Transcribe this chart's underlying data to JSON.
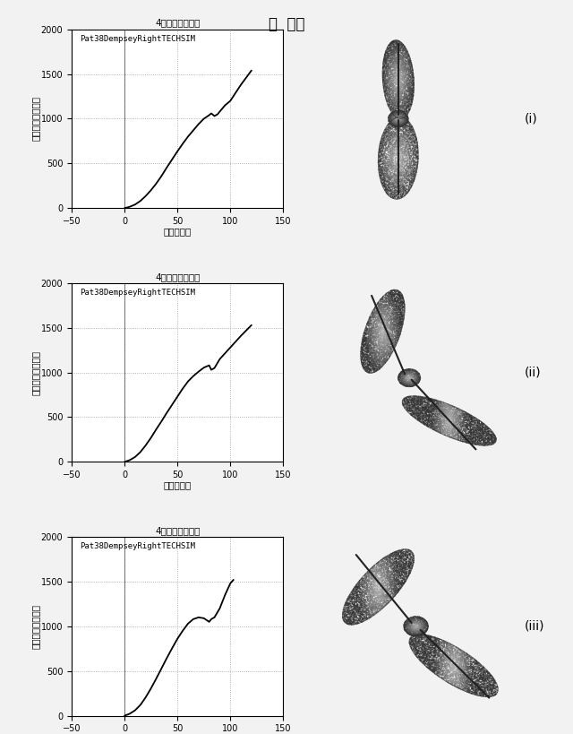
{
  "title_main": "図  １５",
  "panel_title": "4倍力対湾曲角度",
  "legend_label": "Pat38DempseyRightTECHSIM",
  "xlabel": "湾曲（度）",
  "ylabel": "力（ニュートン）",
  "xlim": [
    -50,
    150
  ],
  "ylim": [
    0,
    2000
  ],
  "xticks": [
    -50,
    0,
    50,
    100,
    150
  ],
  "yticks": [
    0,
    500,
    1000,
    1500,
    2000
  ],
  "background_color": "#f0f0f0",
  "plot_bg_color": "#ffffff",
  "labels": [
    "(i)",
    "(ii)",
    "(iii)"
  ],
  "line_color": "#000000",
  "curves": {
    "i": {
      "x": [
        0,
        2,
        5,
        10,
        15,
        20,
        25,
        30,
        35,
        40,
        45,
        50,
        55,
        60,
        65,
        70,
        75,
        80,
        82,
        85,
        88,
        90,
        95,
        100,
        110,
        120
      ],
      "y": [
        0,
        5,
        15,
        40,
        80,
        135,
        200,
        275,
        360,
        455,
        545,
        635,
        720,
        800,
        870,
        940,
        1000,
        1040,
        1060,
        1030,
        1050,
        1080,
        1150,
        1200,
        1380,
        1540
      ]
    },
    "ii": {
      "x": [
        0,
        2,
        5,
        10,
        15,
        20,
        25,
        30,
        35,
        40,
        45,
        50,
        55,
        60,
        65,
        70,
        75,
        80,
        82,
        85,
        90,
        100,
        110,
        120
      ],
      "y": [
        0,
        8,
        20,
        55,
        110,
        185,
        270,
        365,
        455,
        550,
        640,
        730,
        820,
        900,
        960,
        1010,
        1055,
        1080,
        1030,
        1050,
        1150,
        1280,
        1410,
        1530
      ]
    },
    "iii": {
      "x": [
        0,
        2,
        5,
        10,
        15,
        20,
        25,
        30,
        35,
        40,
        45,
        50,
        55,
        60,
        65,
        70,
        75,
        80,
        82,
        85,
        90,
        95,
        100,
        103
      ],
      "y": [
        0,
        8,
        22,
        60,
        120,
        205,
        305,
        415,
        530,
        645,
        755,
        860,
        950,
        1030,
        1080,
        1100,
        1090,
        1050,
        1080,
        1100,
        1200,
        1350,
        1480,
        1520
      ]
    }
  }
}
